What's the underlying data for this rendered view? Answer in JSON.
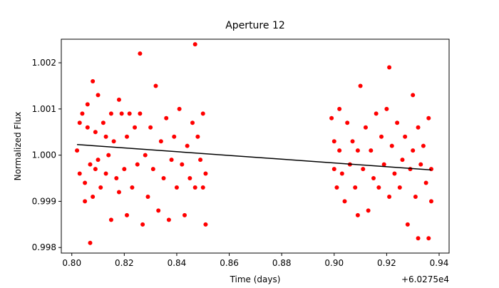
{
  "chart_data": {
    "type": "scatter",
    "title": "Aperture 12",
    "x_label": "Time (days)",
    "y_label": "Normalized Flux",
    "x_offset_label": "+6.0275e4",
    "xlim": [
      0.796,
      0.9438
    ],
    "ylim": [
      0.99788,
      1.00251
    ],
    "xticks": [
      {
        "value": 0.8,
        "label": "0.80"
      },
      {
        "value": 0.82,
        "label": "0.82"
      },
      {
        "value": 0.84,
        "label": "0.84"
      },
      {
        "value": 0.86,
        "label": "0.86"
      },
      {
        "value": 0.88,
        "label": "0.88"
      },
      {
        "value": 0.9,
        "label": "0.90"
      },
      {
        "value": 0.92,
        "label": "0.92"
      },
      {
        "value": 0.94,
        "label": "0.94"
      }
    ],
    "yticks": [
      {
        "value": 0.998,
        "label": "0.998"
      },
      {
        "value": 0.999,
        "label": "0.999"
      },
      {
        "value": 1.0,
        "label": "1.000"
      },
      {
        "value": 1.001,
        "label": "1.001"
      },
      {
        "value": 1.002,
        "label": "1.002"
      }
    ],
    "grid": false,
    "series": [
      {
        "color": "#ff0000",
        "x": [
          0.802,
          0.803,
          0.803,
          0.804,
          0.805,
          0.805,
          0.806,
          0.806,
          0.807,
          0.807,
          0.808,
          0.808,
          0.809,
          0.809,
          0.81,
          0.81,
          0.811,
          0.812,
          0.813,
          0.813,
          0.814,
          0.815,
          0.815,
          0.816,
          0.817,
          0.818,
          0.818,
          0.819,
          0.82,
          0.821,
          0.821,
          0.822,
          0.823,
          0.824,
          0.825,
          0.826,
          0.826,
          0.827,
          0.828,
          0.829,
          0.83,
          0.831,
          0.832,
          0.833,
          0.834,
          0.835,
          0.836,
          0.837,
          0.838,
          0.839,
          0.84,
          0.841,
          0.842,
          0.843,
          0.844,
          0.845,
          0.846,
          0.847,
          0.847,
          0.848,
          0.849,
          0.85,
          0.85,
          0.851,
          0.851,
          0.899,
          0.9,
          0.9,
          0.901,
          0.902,
          0.902,
          0.903,
          0.904,
          0.905,
          0.906,
          0.907,
          0.908,
          0.909,
          0.909,
          0.91,
          0.911,
          0.912,
          0.913,
          0.914,
          0.915,
          0.916,
          0.917,
          0.918,
          0.919,
          0.92,
          0.921,
          0.921,
          0.922,
          0.923,
          0.924,
          0.925,
          0.926,
          0.927,
          0.928,
          0.929,
          0.93,
          0.93,
          0.931,
          0.932,
          0.932,
          0.933,
          0.934,
          0.935,
          0.936,
          0.936,
          0.937,
          0.937
        ],
        "values": [
          1.0001,
          0.9996,
          1.0007,
          1.0009,
          0.9994,
          0.999,
          1.0006,
          1.0011,
          0.9981,
          0.9998,
          1.0016,
          0.9991,
          1.0005,
          0.9997,
          1.0013,
          0.9999,
          0.9993,
          1.0007,
          1.0004,
          0.9996,
          1.0,
          0.9986,
          1.0009,
          1.0003,
          0.9995,
          1.0012,
          0.9992,
          1.0009,
          0.9997,
          0.9987,
          1.0004,
          1.0009,
          0.9993,
          1.0006,
          0.9998,
          1.0022,
          1.0009,
          0.9985,
          1.0,
          0.9991,
          1.0006,
          0.9997,
          1.0015,
          0.9988,
          1.0003,
          0.9995,
          1.0008,
          0.9986,
          0.9999,
          1.0004,
          0.9993,
          1.001,
          0.9998,
          0.9987,
          1.0002,
          0.9995,
          1.0007,
          1.0024,
          0.9993,
          1.0004,
          0.9999,
          1.0009,
          0.9993,
          0.9985,
          0.9996,
          1.0008,
          0.9997,
          1.0003,
          0.9993,
          1.001,
          1.0001,
          0.9996,
          0.999,
          1.0007,
          0.9998,
          1.0003,
          0.9993,
          1.0001,
          0.9987,
          1.0015,
          0.9997,
          1.0006,
          0.9988,
          1.0001,
          0.9995,
          1.0009,
          0.9993,
          1.0004,
          0.9998,
          1.001,
          1.0019,
          0.9991,
          1.0002,
          0.9996,
          1.0007,
          0.9993,
          0.9999,
          1.0004,
          0.9985,
          0.9997,
          1.0013,
          1.0001,
          0.9991,
          0.9982,
          1.0006,
          0.9998,
          1.0002,
          0.9994,
          0.9982,
          1.0008,
          0.9997,
          0.999
        ]
      }
    ],
    "fit": {
      "color": "#000000",
      "x": [
        0.802,
        0.937
      ],
      "values": [
        1.00023,
        0.99968
      ]
    }
  }
}
